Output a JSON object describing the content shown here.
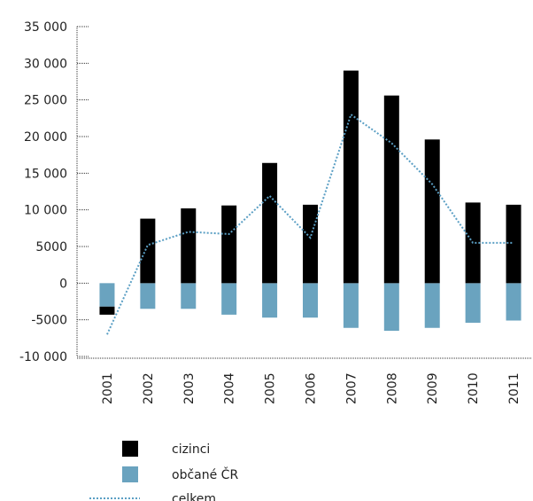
{
  "chart_data": {
    "type": "bar",
    "categories": [
      "2001",
      "2002",
      "2003",
      "2004",
      "2005",
      "2006",
      "2007",
      "2008",
      "2009",
      "2010",
      "2011"
    ],
    "series": [
      {
        "name": "cizinci",
        "type": "bar",
        "color": "#000000",
        "values": [
          -1100,
          8800,
          10200,
          10600,
          16400,
          10700,
          29000,
          25600,
          19600,
          11000,
          10700
        ]
      },
      {
        "name": "občané ČR",
        "type": "bar",
        "color": "#6aa3bf",
        "values": [
          -3200,
          -3500,
          -3500,
          -4300,
          -4700,
          -4700,
          -6100,
          -6500,
          -6100,
          -5400,
          -5100
        ]
      },
      {
        "name": "celkem",
        "type": "line",
        "style": "dotted",
        "color": "#5b9fc4",
        "values": [
          -7000,
          5200,
          7000,
          6700,
          11900,
          6200,
          23000,
          19100,
          13500,
          5500,
          5500
        ]
      }
    ],
    "y_ticks": [
      "35 000",
      "30 000",
      "25 000",
      "20 000",
      "15 000",
      "10 000",
      "5000",
      "0",
      "-5000",
      "-10 000"
    ],
    "y_tick_values": [
      35000,
      30000,
      25000,
      20000,
      15000,
      10000,
      5000,
      0,
      -5000,
      -10000
    ],
    "ylim": [
      -10000,
      35000
    ],
    "legend_position": "bottom",
    "title": "",
    "xlabel": "",
    "ylabel": ""
  }
}
